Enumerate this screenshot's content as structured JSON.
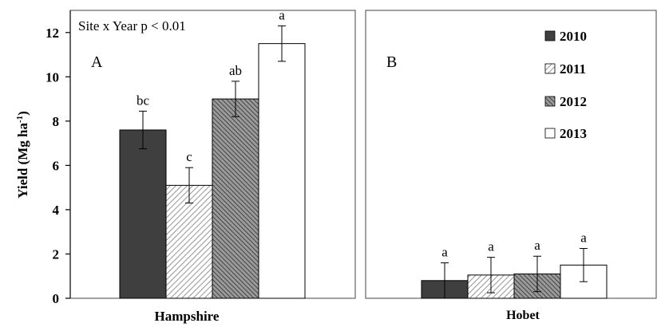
{
  "chart_data": {
    "type": "bar",
    "ylabel": "Yield (Mg ha",
    "ylabel_superscript": "-1",
    "ylabel_close": ")",
    "ylim": [
      0,
      13
    ],
    "yticks": [
      "0",
      "2",
      "4",
      "6",
      "8",
      "10",
      "12"
    ],
    "grid": false,
    "legend_position": "top-right of panel B",
    "annotation": "Site x Year p < 0.01",
    "series": [
      {
        "name": "2010",
        "fill": "solid",
        "color": "#3f3f3f"
      },
      {
        "name": "2011",
        "fill": "light-hatch",
        "color": "#bdbdbd"
      },
      {
        "name": "2012",
        "fill": "dark-hatch",
        "color": "#6a6a6a"
      },
      {
        "name": "2013",
        "fill": "white",
        "color": "#ffffff"
      }
    ],
    "panels": [
      {
        "panel_label": "A",
        "category": "Hampshire",
        "bars": [
          {
            "series": "2010",
            "value": 7.6,
            "error": 0.85,
            "letter": "bc"
          },
          {
            "series": "2011",
            "value": 5.1,
            "error": 0.8,
            "letter": "c"
          },
          {
            "series": "2012",
            "value": 9.0,
            "error": 0.8,
            "letter": "ab"
          },
          {
            "series": "2013",
            "value": 11.5,
            "error": 0.8,
            "letter": "a"
          }
        ]
      },
      {
        "panel_label": "B",
        "category": "Hobet",
        "bars": [
          {
            "series": "2010",
            "value": 0.8,
            "error": 0.8,
            "letter": "a"
          },
          {
            "series": "2011",
            "value": 1.05,
            "error": 0.8,
            "letter": "a"
          },
          {
            "series": "2012",
            "value": 1.1,
            "error": 0.8,
            "letter": "a"
          },
          {
            "series": "2013",
            "value": 1.5,
            "error": 0.75,
            "letter": "a"
          }
        ]
      }
    ]
  }
}
